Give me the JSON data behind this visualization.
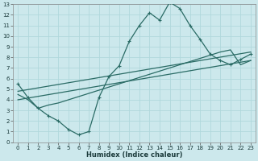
{
  "title": "",
  "xlabel": "Humidex (Indice chaleur)",
  "bg_color": "#cce8ec",
  "line_color": "#2a6b65",
  "grid_color": "#b0d8dc",
  "xlim": [
    -0.5,
    23.5
  ],
  "ylim": [
    0,
    13
  ],
  "xticks": [
    0,
    1,
    2,
    3,
    4,
    5,
    6,
    7,
    8,
    9,
    10,
    11,
    12,
    13,
    14,
    15,
    16,
    17,
    18,
    19,
    20,
    21,
    22,
    23
  ],
  "yticks": [
    0,
    1,
    2,
    3,
    4,
    5,
    6,
    7,
    8,
    9,
    10,
    11,
    12,
    13
  ],
  "line1_x": [
    0,
    1,
    2,
    3,
    4,
    5,
    6,
    7,
    8,
    9,
    10,
    11,
    12,
    13,
    14,
    15,
    16,
    17,
    18,
    19,
    20,
    21,
    22,
    23
  ],
  "line1_y": [
    5.5,
    4.2,
    3.2,
    2.5,
    2.0,
    1.2,
    0.7,
    1.0,
    4.2,
    6.2,
    7.2,
    9.5,
    11.0,
    12.2,
    11.5,
    13.2,
    12.6,
    11.0,
    9.7,
    8.3,
    7.7,
    7.3,
    7.8,
    8.3
  ],
  "line2_x": [
    0,
    1,
    2,
    3,
    4,
    5,
    6,
    7,
    8,
    9,
    10,
    11,
    12,
    13,
    14,
    15,
    16,
    17,
    18,
    19,
    20,
    21,
    22,
    23
  ],
  "line2_y": [
    4.5,
    4.0,
    3.2,
    3.5,
    3.7,
    4.0,
    4.3,
    4.6,
    4.9,
    5.2,
    5.5,
    5.8,
    6.1,
    6.4,
    6.7,
    7.0,
    7.3,
    7.6,
    7.9,
    8.2,
    8.5,
    8.7,
    7.3,
    7.7
  ],
  "line3_x": [
    0,
    23
  ],
  "line3_y": [
    4.8,
    8.5
  ],
  "line4_x": [
    0,
    23
  ],
  "line4_y": [
    4.0,
    7.7
  ],
  "tick_fontsize": 5,
  "xlabel_fontsize": 6,
  "linewidth": 0.9,
  "marker": "+",
  "markersize": 2.5
}
